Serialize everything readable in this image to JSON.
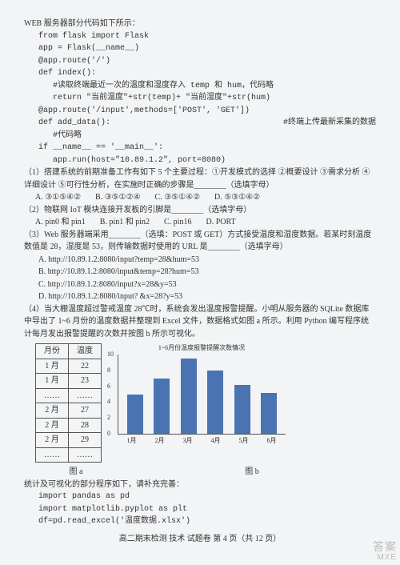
{
  "intro": "WEB 服务器部分代码如下所示：",
  "code": {
    "l1": "from flask import Flask",
    "l2": "app = Flask(__name__)",
    "l3": "@app.route('/')",
    "l4": "def index():",
    "l5": "#读取终端最近一次的温度和湿度存入 temp 和 hum，代码略",
    "l6": "return \"当前温度\"+str(temp)+ \"当前湿度\"+str(hum)",
    "l7": "@app.route('/input',methods=['POST', 'GET'])",
    "l8": "def add_data():",
    "l8c": "#终端上传最新采集的数据",
    "l9": "#代码略",
    "l10": "if __name__ == '__main__':",
    "l11": "app.run(host=\"10.89.1.2\", port=8080)"
  },
  "q1": {
    "line1": "（1）搭建系统的前期准备工作有如下 5 个主要过程：①开发模式的选择 ②概要设计 ③需求分析 ④详细设计 ⑤可行性分析，在实施时正确的步骤是________（选填字母）",
    "optA": "A. ③①⑤④②",
    "optB": "B. ③⑤①②④",
    "optC": "C. ③⑤①④②",
    "optD": "D. ⑤③①④②"
  },
  "q2": {
    "line1": "（2）物联网 IoT 模块连接开发板的引脚是________（选填字母）",
    "optA": "A. pin0 和 pin1",
    "optB": "B. pin1 和 pin2",
    "optC": "C. pin16",
    "optD": "D. PORT"
  },
  "q3": {
    "line1": "（3）Web 服务器端采用________（选填：POST 或 GET）方式接受温度和湿度数据。若某时刻温度数值是 28，湿度是 53，则传输数据时使用的 URL 是________（选填字母）",
    "optA": "A. http://10.89.1.2:8080/input?temp=28&hum=53",
    "optB": "B. http://10.89.1.2:8080/input&temp=28?hum=53",
    "optC": "C. http://10.89.1.2:8080/input?x=28&y=53",
    "optD": "D. http://10.89.1.2:8080/input?   &x=28?y=53"
  },
  "q4": {
    "line1": "（4）当大棚温度超过警戒温度 28℃时，系统会发出温度报警提醒。小明从服务器的 SQLite 数据库中导出了 1~6 月份的温度数据并整理到 Excel 文件，数据格式如图 a 所示。利用 Python 编写程序统计每月发出报警提醒的次数并按图 b 所示可视化。"
  },
  "table": {
    "h1": "月份",
    "h2": "温度",
    "r1c1": "1 月",
    "r1c2": "22",
    "r2c1": "1 月",
    "r2c2": "23",
    "dots": "……",
    "r3c1": "2 月",
    "r3c2": "27",
    "r4c1": "2 月",
    "r4c2": "28",
    "r5c1": "2 月",
    "r5c2": "29"
  },
  "chart": {
    "title": "1~6月份温度报警提醒次数情况",
    "values": [
      5,
      7,
      9.5,
      8,
      6.2,
      5.2
    ],
    "ymax": 10,
    "labels": [
      "1月",
      "2月",
      "3月",
      "4月",
      "5月",
      "6月"
    ],
    "bar_color": "#4a73b2",
    "yticks": [
      0,
      2,
      4,
      6,
      8,
      10
    ]
  },
  "caption_a": "图 a",
  "caption_b": "图 b",
  "post": "统计及可视化的部分程序如下，请补充完善：",
  "code2": {
    "l1": "import pandas as pd",
    "l2": "import matplotlib.pyplot as plt",
    "l3": "df=pd.read_excel('温度数据.xlsx')"
  },
  "footer": "高二期末检测  技术  试题卷  第 4 页（共 12 页）",
  "watermark1": "答案",
  "watermark2": "MXE"
}
